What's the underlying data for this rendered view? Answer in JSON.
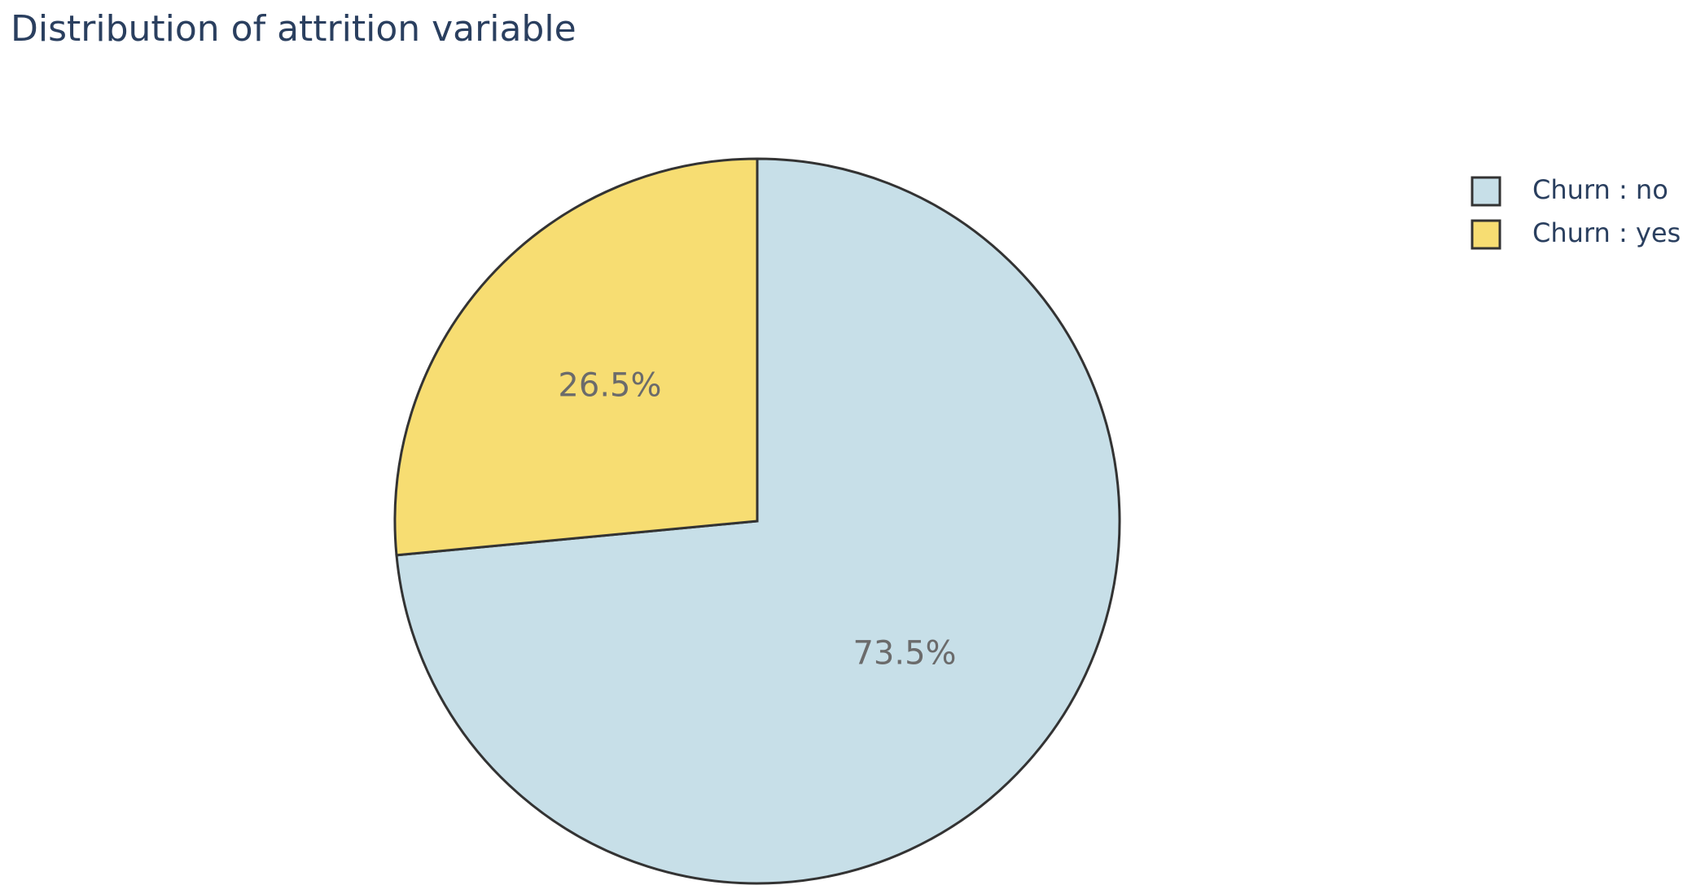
{
  "chart_data": {
    "type": "pie",
    "title": "Distribution of attrition variable",
    "categories": [
      "Churn : no",
      "Churn : yes"
    ],
    "values": [
      73.5,
      26.5
    ],
    "value_labels": [
      "73.5%",
      "26.5%"
    ],
    "colors": [
      "#c7dfe8",
      "#f7dd72"
    ],
    "legend_position": "top-right"
  }
}
